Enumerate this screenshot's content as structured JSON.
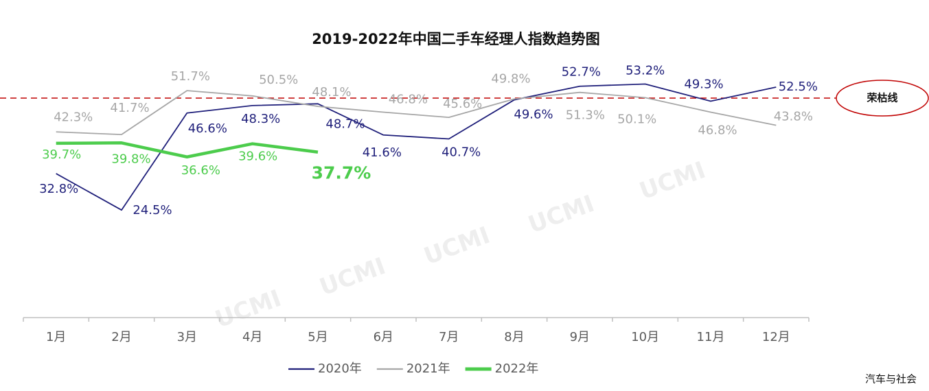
{
  "chart_data": {
    "type": "line",
    "title": "2019-2022年中国二手车经理人指数趋势图",
    "categories": [
      "1月",
      "2月",
      "3月",
      "4月",
      "5月",
      "6月",
      "7月",
      "8月",
      "9月",
      "10月",
      "11月",
      "12月"
    ],
    "series": [
      {
        "name": "2020年",
        "color": "#1f1f7a",
        "values": [
          32.8,
          24.5,
          46.6,
          48.3,
          48.7,
          41.6,
          40.7,
          49.6,
          52.7,
          53.2,
          49.3,
          52.5
        ],
        "value_labels": [
          "32.8%",
          "24.5%",
          "46.6%",
          "48.3%",
          "48.7%",
          "41.6%",
          "40.7%",
          "49.6%",
          "52.7%",
          "53.2%",
          "49.3%",
          "52.5%"
        ]
      },
      {
        "name": "2021年",
        "color": "#a6a6a6",
        "values": [
          42.3,
          41.7,
          51.7,
          50.5,
          48.1,
          46.8,
          45.6,
          49.8,
          51.3,
          50.1,
          46.8,
          43.8
        ],
        "value_labels": [
          "42.3%",
          "41.7%",
          "51.7%",
          "50.5%",
          "48.1%",
          "46.8%",
          "45.6%",
          "49.8%",
          "51.3%",
          "50.1%",
          "46.8%",
          "43.8%"
        ]
      },
      {
        "name": "2022年",
        "color": "#4ccc4c",
        "values": [
          39.7,
          39.8,
          36.6,
          39.6,
          37.7,
          null,
          null,
          null,
          null,
          null,
          null,
          null
        ],
        "value_labels": [
          "39.7%",
          "39.8%",
          "36.6%",
          "39.6%",
          "37.7%",
          null,
          null,
          null,
          null,
          null,
          null,
          null
        ]
      }
    ],
    "ylim": [
      0,
      60
    ],
    "reference_line": {
      "value": 50,
      "label": "荣枯线",
      "color": "#c00000"
    },
    "watermark": "UCMI",
    "source": "汽车与社会"
  }
}
